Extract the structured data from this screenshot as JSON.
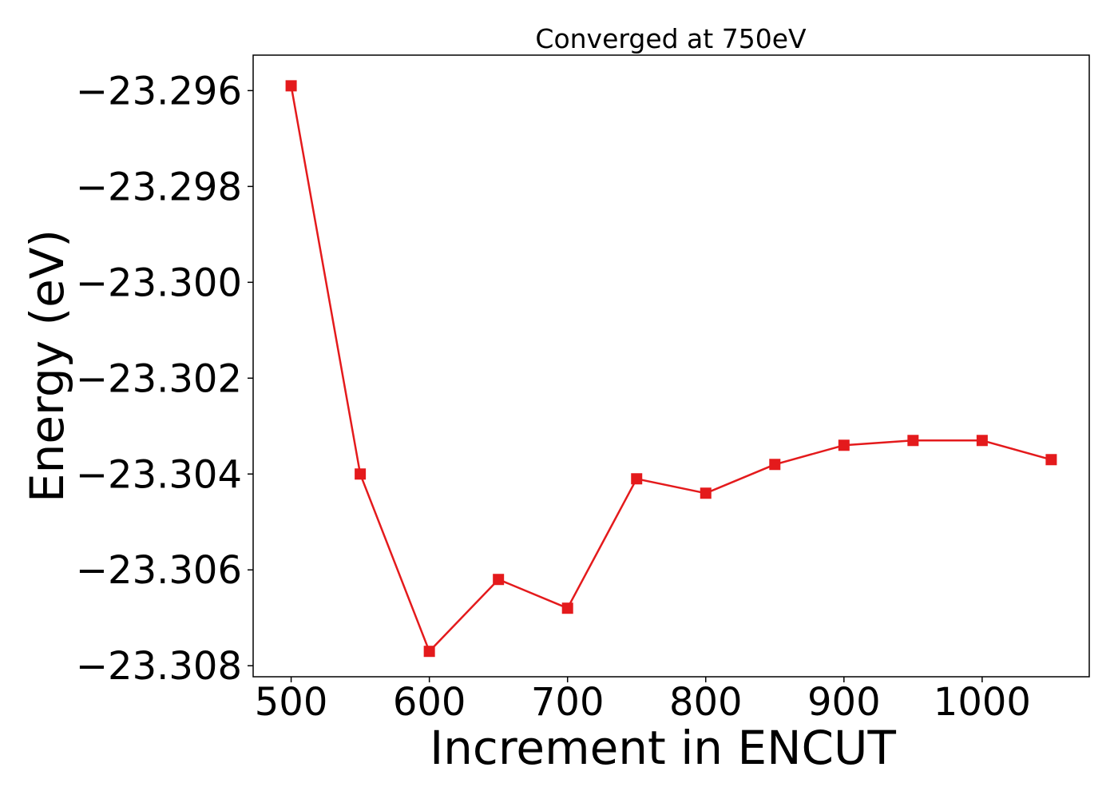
{
  "chart_data": {
    "type": "line",
    "title": "Converged at 750eV",
    "xlabel": "Increment in ENCUT",
    "ylabel": "Energy (eV)",
    "x": [
      500,
      550,
      600,
      650,
      700,
      750,
      800,
      850,
      900,
      950,
      1000,
      1050
    ],
    "series": [
      {
        "values": [
          -23.2959,
          -23.304,
          -23.3077,
          -23.3062,
          -23.3068,
          -23.3041,
          -23.3044,
          -23.3038,
          -23.3034,
          -23.3033,
          -23.3033,
          -23.3037
        ],
        "color": "#e41a1c",
        "marker": "square"
      }
    ],
    "xticks": [
      500,
      600,
      700,
      800,
      900,
      1000
    ],
    "xtick_labels": [
      "500",
      "600",
      "700",
      "800",
      "900",
      "1000"
    ],
    "yticks": [
      -23.296,
      -23.298,
      -23.3,
      -23.302,
      -23.304,
      -23.306,
      -23.308
    ],
    "ytick_labels": [
      "−23.296",
      "−23.298",
      "−23.300",
      "−23.302",
      "−23.304",
      "−23.306",
      "−23.308"
    ],
    "xlim": [
      472.5,
      1077.5
    ],
    "ylim": [
      -23.30823,
      -23.29526
    ],
    "grid": false,
    "legend": false
  }
}
